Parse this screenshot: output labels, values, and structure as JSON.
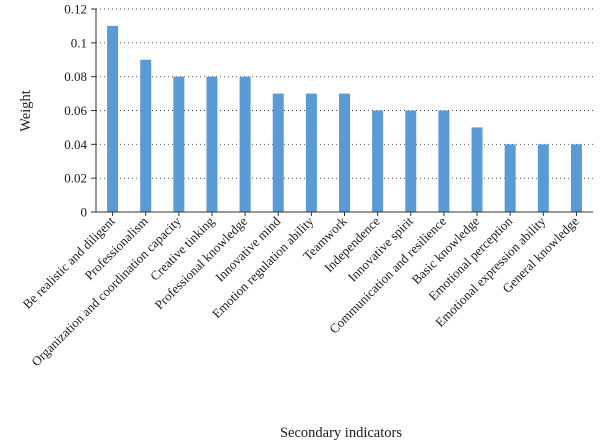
{
  "chart_data": {
    "type": "bar",
    "xlabel": "Secondary indicators",
    "ylabel": "Weight",
    "ylim": [
      0,
      0.12
    ],
    "yticks": [
      "0",
      "0.02",
      "0.04",
      "0.06",
      "0.08",
      "0.1",
      "0.12"
    ],
    "grid": "horizontal-dotted",
    "categories": [
      "Be realistic and diligent",
      "Professionalism",
      "Organization and coordination capacity",
      "Creative tinking",
      "Professional knowledge",
      "Innovative mind",
      "Emotion regulation ability",
      "Teamwork",
      "Independence",
      "Innovative spirit",
      "Communication and resilience",
      "Basic knowledge",
      "Emotional perception",
      "Emotional expression ability",
      "General knowledge"
    ],
    "values": [
      0.11,
      0.09,
      0.08,
      0.08,
      0.08,
      0.07,
      0.07,
      0.07,
      0.06,
      0.06,
      0.06,
      0.05,
      0.04,
      0.04,
      0.04
    ],
    "bar_color": "#5b9bd5"
  }
}
